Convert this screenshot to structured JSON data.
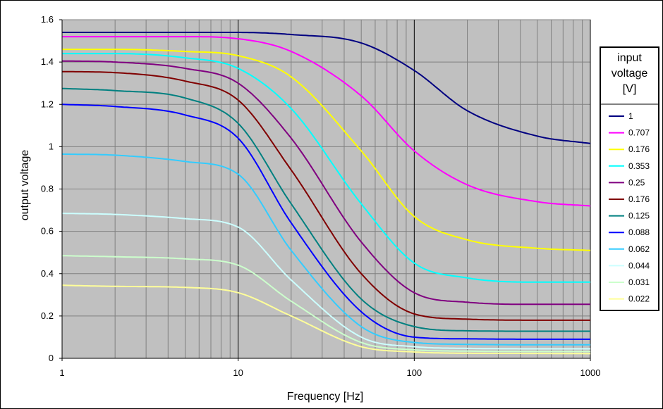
{
  "chart_data": {
    "type": "line",
    "title": "",
    "xlabel": "Frequency [Hz]",
    "ylabel": "output voltage",
    "x_scale": "log",
    "xlim": [
      1,
      1000
    ],
    "ylim": [
      0,
      1.6
    ],
    "x_ticks": [
      "1",
      "10",
      "100",
      "1000"
    ],
    "y_ticks": [
      "0",
      "0.2",
      "0.4",
      "0.6",
      "0.8",
      "1",
      "1.2",
      "1.4",
      "1.6"
    ],
    "grid": true,
    "background": "#c0c0c0",
    "legend": {
      "title_lines": [
        "input",
        "voltage",
        "[V]"
      ],
      "placement": "right"
    },
    "x": [
      1,
      2,
      5,
      10,
      20,
      50,
      100,
      200,
      500,
      1000
    ],
    "series": [
      {
        "name": "1",
        "color": "#000080",
        "values": [
          1.54,
          1.54,
          1.54,
          1.54,
          1.53,
          1.49,
          1.36,
          1.17,
          1.05,
          1.015
        ]
      },
      {
        "name": "0.707",
        "color": "#ff00ff",
        "values": [
          1.52,
          1.52,
          1.52,
          1.51,
          1.45,
          1.24,
          0.98,
          0.82,
          0.74,
          0.72
        ]
      },
      {
        "name": "0.176",
        "color": "#ffff00",
        "values": [
          1.46,
          1.46,
          1.45,
          1.43,
          1.33,
          0.98,
          0.67,
          0.56,
          0.52,
          0.51
        ]
      },
      {
        "name": "0.353",
        "color": "#00ffff",
        "values": [
          1.44,
          1.44,
          1.42,
          1.37,
          1.18,
          0.73,
          0.45,
          0.38,
          0.36,
          0.36
        ]
      },
      {
        "name": "0.25",
        "color": "#800080",
        "values": [
          1.405,
          1.4,
          1.37,
          1.3,
          1.04,
          0.55,
          0.31,
          0.265,
          0.255,
          0.255
        ]
      },
      {
        "name": "0.176",
        "color": "#800000",
        "values": [
          1.355,
          1.35,
          1.31,
          1.22,
          0.89,
          0.4,
          0.21,
          0.185,
          0.18,
          0.18
        ]
      },
      {
        "name": "0.125",
        "color": "#008080",
        "values": [
          1.275,
          1.265,
          1.23,
          1.11,
          0.73,
          0.28,
          0.15,
          0.13,
          0.128,
          0.128
        ]
      },
      {
        "name": "0.088",
        "color": "#0000ff",
        "values": [
          1.2,
          1.19,
          1.15,
          1.04,
          0.64,
          0.22,
          0.1,
          0.092,
          0.09,
          0.09
        ]
      },
      {
        "name": "0.062",
        "color": "#33ccff",
        "values": [
          0.965,
          0.96,
          0.93,
          0.87,
          0.51,
          0.15,
          0.075,
          0.066,
          0.064,
          0.064
        ]
      },
      {
        "name": "0.044",
        "color": "#ccffff",
        "values": [
          0.685,
          0.68,
          0.66,
          0.62,
          0.37,
          0.1,
          0.055,
          0.047,
          0.045,
          0.045
        ]
      },
      {
        "name": "0.031",
        "color": "#ccffcc",
        "values": [
          0.485,
          0.48,
          0.47,
          0.44,
          0.27,
          0.075,
          0.04,
          0.034,
          0.032,
          0.032
        ]
      },
      {
        "name": "0.022",
        "color": "#ffff99",
        "values": [
          0.345,
          0.34,
          0.335,
          0.31,
          0.2,
          0.055,
          0.03,
          0.024,
          0.023,
          0.022
        ]
      }
    ]
  }
}
